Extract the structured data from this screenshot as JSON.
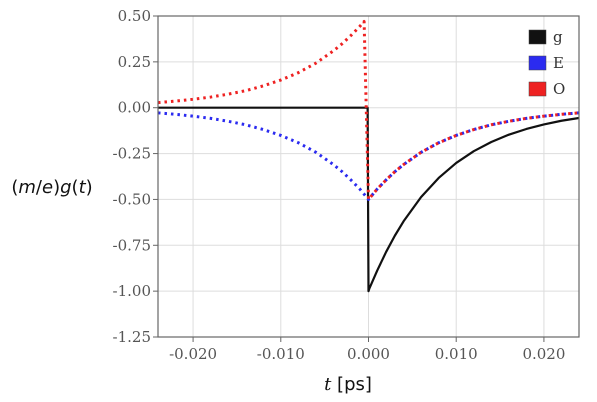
{
  "chart_data": {
    "type": "line",
    "xlabel": {
      "var": "t",
      "unit": " [ps]"
    },
    "ylabel": {
      "prefix": "(",
      "m": "m",
      "slash": "/",
      "e": "e",
      "close": ")",
      "g": "g",
      "open2": "(",
      "t": "t",
      "close2": ")"
    },
    "xlim": [
      -0.024,
      0.024
    ],
    "ylim": [
      -1.25,
      0.5
    ],
    "x_ticks": [
      {
        "value": -0.02,
        "label": "-0.020"
      },
      {
        "value": -0.01,
        "label": "-0.010"
      },
      {
        "value": 0.0,
        "label": "0.000"
      },
      {
        "value": 0.01,
        "label": "0.010"
      },
      {
        "value": 0.02,
        "label": "0.020"
      }
    ],
    "y_ticks": [
      {
        "value": 0.5,
        "label": "0.50"
      },
      {
        "value": 0.25,
        "label": "0.25"
      },
      {
        "value": 0.0,
        "label": "0.00"
      },
      {
        "value": -0.25,
        "label": "-0.25"
      },
      {
        "value": -0.5,
        "label": "-0.50"
      },
      {
        "value": -0.75,
        "label": "-0.75"
      },
      {
        "value": -1.0,
        "label": "-1.00"
      },
      {
        "value": -1.25,
        "label": "-1.25"
      }
    ],
    "grid": true,
    "legend_position": "top-right",
    "series": [
      {
        "name": "g",
        "color": "#111111",
        "style": "solid",
        "x": [
          -0.024,
          -0.0001,
          0.0,
          0.0001,
          0.001,
          0.002,
          0.003,
          0.004,
          0.006,
          0.008,
          0.01,
          0.012,
          0.014,
          0.016,
          0.018,
          0.02,
          0.022,
          0.024
        ],
        "y": [
          0.0,
          0.0,
          -1.0,
          -0.985,
          -0.887,
          -0.787,
          -0.698,
          -0.619,
          -0.487,
          -0.383,
          -0.301,
          -0.237,
          -0.187,
          -0.147,
          -0.116,
          -0.091,
          -0.071,
          -0.056
        ]
      },
      {
        "name": "E",
        "color": "#2b2bf0",
        "style": "dotted",
        "x": [
          -0.024,
          -0.022,
          -0.02,
          -0.018,
          -0.016,
          -0.014,
          -0.012,
          -0.01,
          -0.008,
          -0.006,
          -0.004,
          -0.003,
          -0.002,
          -0.001,
          0.0,
          0.001,
          0.002,
          0.003,
          0.004,
          0.006,
          0.008,
          0.01,
          0.012,
          0.014,
          0.016,
          0.018,
          0.02,
          0.022,
          0.024
        ],
        "y": [
          -0.028,
          -0.036,
          -0.046,
          -0.058,
          -0.074,
          -0.093,
          -0.119,
          -0.151,
          -0.191,
          -0.243,
          -0.31,
          -0.349,
          -0.394,
          -0.443,
          -0.5,
          -0.443,
          -0.394,
          -0.349,
          -0.31,
          -0.243,
          -0.191,
          -0.151,
          -0.119,
          -0.093,
          -0.074,
          -0.058,
          -0.046,
          -0.036,
          -0.028
        ]
      },
      {
        "name": "O",
        "color": "#ee2222",
        "style": "dotted",
        "x": [
          -0.024,
          -0.022,
          -0.02,
          -0.018,
          -0.016,
          -0.014,
          -0.012,
          -0.01,
          -0.008,
          -0.006,
          -0.004,
          -0.003,
          -0.002,
          -0.001,
          -0.0005,
          0.0,
          0.001,
          0.002,
          0.003,
          0.004,
          0.006,
          0.008,
          0.01,
          0.012,
          0.014,
          0.016,
          0.018,
          0.02,
          0.022,
          0.024
        ],
        "y": [
          0.028,
          0.036,
          0.046,
          0.058,
          0.074,
          0.093,
          0.119,
          0.151,
          0.191,
          0.243,
          0.31,
          0.349,
          0.394,
          0.443,
          0.47,
          -0.5,
          -0.443,
          -0.394,
          -0.349,
          -0.31,
          -0.243,
          -0.191,
          -0.151,
          -0.119,
          -0.093,
          -0.074,
          -0.058,
          -0.046,
          -0.036,
          -0.028
        ]
      }
    ]
  }
}
